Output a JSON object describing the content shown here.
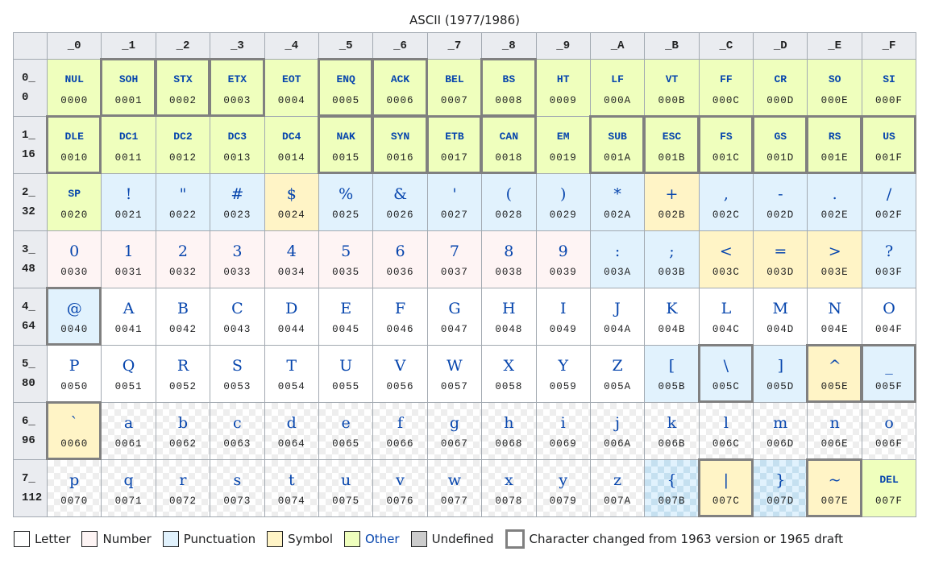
{
  "title": "ASCII (1977/1986)",
  "colors": {
    "letter": "#ffffff",
    "number": "#fef4f4",
    "punctuation": "#e1f2fd",
    "symbol": "#fff4c6",
    "other": "#efffbd",
    "undefined": "#cccccc",
    "changed_border": "#808080",
    "glyph": "#0645ad",
    "header_bg": "#eaecf0"
  },
  "column_headers": [
    "_0",
    "_1",
    "_2",
    "_3",
    "_4",
    "_5",
    "_6",
    "_7",
    "_8",
    "_9",
    "_A",
    "_B",
    "_C",
    "_D",
    "_E",
    "_F"
  ],
  "rows": [
    {
      "hex": "0_",
      "dec": "0",
      "cells": [
        {
          "g": "NUL",
          "cp": "0000",
          "cat": "other",
          "ctrl": true,
          "changed": false
        },
        {
          "g": "SOH",
          "cp": "0001",
          "cat": "other",
          "ctrl": true,
          "changed": true
        },
        {
          "g": "STX",
          "cp": "0002",
          "cat": "other",
          "ctrl": true,
          "changed": true
        },
        {
          "g": "ETX",
          "cp": "0003",
          "cat": "other",
          "ctrl": true,
          "changed": true
        },
        {
          "g": "EOT",
          "cp": "0004",
          "cat": "other",
          "ctrl": true,
          "changed": false
        },
        {
          "g": "ENQ",
          "cp": "0005",
          "cat": "other",
          "ctrl": true,
          "changed": true
        },
        {
          "g": "ACK",
          "cp": "0006",
          "cat": "other",
          "ctrl": true,
          "changed": true
        },
        {
          "g": "BEL",
          "cp": "0007",
          "cat": "other",
          "ctrl": true,
          "changed": false
        },
        {
          "g": "BS",
          "cp": "0008",
          "cat": "other",
          "ctrl": true,
          "changed": true
        },
        {
          "g": "HT",
          "cp": "0009",
          "cat": "other",
          "ctrl": true,
          "changed": false
        },
        {
          "g": "LF",
          "cp": "000A",
          "cat": "other",
          "ctrl": true,
          "changed": false
        },
        {
          "g": "VT",
          "cp": "000B",
          "cat": "other",
          "ctrl": true,
          "changed": false
        },
        {
          "g": "FF",
          "cp": "000C",
          "cat": "other",
          "ctrl": true,
          "changed": false
        },
        {
          "g": "CR",
          "cp": "000D",
          "cat": "other",
          "ctrl": true,
          "changed": false
        },
        {
          "g": "SO",
          "cp": "000E",
          "cat": "other",
          "ctrl": true,
          "changed": false
        },
        {
          "g": "SI",
          "cp": "000F",
          "cat": "other",
          "ctrl": true,
          "changed": false
        }
      ]
    },
    {
      "hex": "1_",
      "dec": "16",
      "cells": [
        {
          "g": "DLE",
          "cp": "0010",
          "cat": "other",
          "ctrl": true,
          "changed": true
        },
        {
          "g": "DC1",
          "cp": "0011",
          "cat": "other",
          "ctrl": true,
          "changed": false
        },
        {
          "g": "DC2",
          "cp": "0012",
          "cat": "other",
          "ctrl": true,
          "changed": false
        },
        {
          "g": "DC3",
          "cp": "0013",
          "cat": "other",
          "ctrl": true,
          "changed": false
        },
        {
          "g": "DC4",
          "cp": "0014",
          "cat": "other",
          "ctrl": true,
          "changed": false
        },
        {
          "g": "NAK",
          "cp": "0015",
          "cat": "other",
          "ctrl": true,
          "changed": true
        },
        {
          "g": "SYN",
          "cp": "0016",
          "cat": "other",
          "ctrl": true,
          "changed": true
        },
        {
          "g": "ETB",
          "cp": "0017",
          "cat": "other",
          "ctrl": true,
          "changed": true
        },
        {
          "g": "CAN",
          "cp": "0018",
          "cat": "other",
          "ctrl": true,
          "changed": true
        },
        {
          "g": "EM",
          "cp": "0019",
          "cat": "other",
          "ctrl": true,
          "changed": false
        },
        {
          "g": "SUB",
          "cp": "001A",
          "cat": "other",
          "ctrl": true,
          "changed": true
        },
        {
          "g": "ESC",
          "cp": "001B",
          "cat": "other",
          "ctrl": true,
          "changed": true
        },
        {
          "g": "FS",
          "cp": "001C",
          "cat": "other",
          "ctrl": true,
          "changed": true
        },
        {
          "g": "GS",
          "cp": "001D",
          "cat": "other",
          "ctrl": true,
          "changed": true
        },
        {
          "g": "RS",
          "cp": "001E",
          "cat": "other",
          "ctrl": true,
          "changed": true
        },
        {
          "g": "US",
          "cp": "001F",
          "cat": "other",
          "ctrl": true,
          "changed": true
        }
      ]
    },
    {
      "hex": "2_",
      "dec": "32",
      "cells": [
        {
          "g": "SP",
          "cp": "0020",
          "cat": "other",
          "ctrl": true,
          "changed": false
        },
        {
          "g": "!",
          "cp": "0021",
          "cat": "punct",
          "changed": false
        },
        {
          "g": "\"",
          "cp": "0022",
          "cat": "punct",
          "changed": false
        },
        {
          "g": "#",
          "cp": "0023",
          "cat": "punct",
          "changed": false
        },
        {
          "g": "$",
          "cp": "0024",
          "cat": "symbol",
          "changed": false
        },
        {
          "g": "%",
          "cp": "0025",
          "cat": "punct",
          "changed": false
        },
        {
          "g": "&",
          "cp": "0026",
          "cat": "punct",
          "changed": false
        },
        {
          "g": "'",
          "cp": "0027",
          "cat": "punct",
          "changed": false
        },
        {
          "g": "(",
          "cp": "0028",
          "cat": "punct",
          "changed": false
        },
        {
          "g": ")",
          "cp": "0029",
          "cat": "punct",
          "changed": false
        },
        {
          "g": "*",
          "cp": "002A",
          "cat": "punct",
          "changed": false
        },
        {
          "g": "+",
          "cp": "002B",
          "cat": "symbol",
          "changed": false
        },
        {
          "g": ",",
          "cp": "002C",
          "cat": "punct",
          "changed": false
        },
        {
          "g": "-",
          "cp": "002D",
          "cat": "punct",
          "changed": false
        },
        {
          "g": ".",
          "cp": "002E",
          "cat": "punct",
          "changed": false
        },
        {
          "g": "/",
          "cp": "002F",
          "cat": "punct",
          "changed": false
        }
      ]
    },
    {
      "hex": "3_",
      "dec": "48",
      "cells": [
        {
          "g": "0",
          "cp": "0030",
          "cat": "number",
          "changed": false
        },
        {
          "g": "1",
          "cp": "0031",
          "cat": "number",
          "changed": false
        },
        {
          "g": "2",
          "cp": "0032",
          "cat": "number",
          "changed": false
        },
        {
          "g": "3",
          "cp": "0033",
          "cat": "number",
          "changed": false
        },
        {
          "g": "4",
          "cp": "0034",
          "cat": "number",
          "changed": false
        },
        {
          "g": "5",
          "cp": "0035",
          "cat": "number",
          "changed": false
        },
        {
          "g": "6",
          "cp": "0036",
          "cat": "number",
          "changed": false
        },
        {
          "g": "7",
          "cp": "0037",
          "cat": "number",
          "changed": false
        },
        {
          "g": "8",
          "cp": "0038",
          "cat": "number",
          "changed": false
        },
        {
          "g": "9",
          "cp": "0039",
          "cat": "number",
          "changed": false
        },
        {
          "g": ":",
          "cp": "003A",
          "cat": "punct",
          "changed": false
        },
        {
          "g": ";",
          "cp": "003B",
          "cat": "punct",
          "changed": false
        },
        {
          "g": "<",
          "cp": "003C",
          "cat": "symbol",
          "changed": false
        },
        {
          "g": "=",
          "cp": "003D",
          "cat": "symbol",
          "changed": false
        },
        {
          "g": ">",
          "cp": "003E",
          "cat": "symbol",
          "changed": false
        },
        {
          "g": "?",
          "cp": "003F",
          "cat": "punct",
          "changed": false
        }
      ]
    },
    {
      "hex": "4_",
      "dec": "64",
      "cells": [
        {
          "g": "@",
          "cp": "0040",
          "cat": "punct",
          "changed": true
        },
        {
          "g": "A",
          "cp": "0041",
          "cat": "letter",
          "changed": false
        },
        {
          "g": "B",
          "cp": "0042",
          "cat": "letter",
          "changed": false
        },
        {
          "g": "C",
          "cp": "0043",
          "cat": "letter",
          "changed": false
        },
        {
          "g": "D",
          "cp": "0044",
          "cat": "letter",
          "changed": false
        },
        {
          "g": "E",
          "cp": "0045",
          "cat": "letter",
          "changed": false
        },
        {
          "g": "F",
          "cp": "0046",
          "cat": "letter",
          "changed": false
        },
        {
          "g": "G",
          "cp": "0047",
          "cat": "letter",
          "changed": false
        },
        {
          "g": "H",
          "cp": "0048",
          "cat": "letter",
          "changed": false
        },
        {
          "g": "I",
          "cp": "0049",
          "cat": "letter",
          "changed": false
        },
        {
          "g": "J",
          "cp": "004A",
          "cat": "letter",
          "changed": false
        },
        {
          "g": "K",
          "cp": "004B",
          "cat": "letter",
          "changed": false
        },
        {
          "g": "L",
          "cp": "004C",
          "cat": "letter",
          "changed": false
        },
        {
          "g": "M",
          "cp": "004D",
          "cat": "letter",
          "changed": false
        },
        {
          "g": "N",
          "cp": "004E",
          "cat": "letter",
          "changed": false
        },
        {
          "g": "O",
          "cp": "004F",
          "cat": "letter",
          "changed": false
        }
      ]
    },
    {
      "hex": "5_",
      "dec": "80",
      "cells": [
        {
          "g": "P",
          "cp": "0050",
          "cat": "letter",
          "changed": false
        },
        {
          "g": "Q",
          "cp": "0051",
          "cat": "letter",
          "changed": false
        },
        {
          "g": "R",
          "cp": "0052",
          "cat": "letter",
          "changed": false
        },
        {
          "g": "S",
          "cp": "0053",
          "cat": "letter",
          "changed": false
        },
        {
          "g": "T",
          "cp": "0054",
          "cat": "letter",
          "changed": false
        },
        {
          "g": "U",
          "cp": "0055",
          "cat": "letter",
          "changed": false
        },
        {
          "g": "V",
          "cp": "0056",
          "cat": "letter",
          "changed": false
        },
        {
          "g": "W",
          "cp": "0057",
          "cat": "letter",
          "changed": false
        },
        {
          "g": "X",
          "cp": "0058",
          "cat": "letter",
          "changed": false
        },
        {
          "g": "Y",
          "cp": "0059",
          "cat": "letter",
          "changed": false
        },
        {
          "g": "Z",
          "cp": "005A",
          "cat": "letter",
          "changed": false
        },
        {
          "g": "[",
          "cp": "005B",
          "cat": "punct",
          "changed": false
        },
        {
          "g": "\\",
          "cp": "005C",
          "cat": "punct",
          "changed": true
        },
        {
          "g": "]",
          "cp": "005D",
          "cat": "punct",
          "changed": false
        },
        {
          "g": "^",
          "cp": "005E",
          "cat": "symbol",
          "changed": true
        },
        {
          "g": "_",
          "cp": "005F",
          "cat": "punct",
          "changed": true
        }
      ]
    },
    {
      "hex": "6_",
      "dec": "96",
      "cells": [
        {
          "g": "`",
          "cp": "0060",
          "cat": "symbol",
          "changed": true
        },
        {
          "g": "a",
          "cp": "0061",
          "cat": "letter",
          "checker": true,
          "changed": false
        },
        {
          "g": "b",
          "cp": "0062",
          "cat": "letter",
          "checker": true,
          "changed": false
        },
        {
          "g": "c",
          "cp": "0063",
          "cat": "letter",
          "checker": true,
          "changed": false
        },
        {
          "g": "d",
          "cp": "0064",
          "cat": "letter",
          "checker": true,
          "changed": false
        },
        {
          "g": "e",
          "cp": "0065",
          "cat": "letter",
          "checker": true,
          "changed": false
        },
        {
          "g": "f",
          "cp": "0066",
          "cat": "letter",
          "checker": true,
          "changed": false
        },
        {
          "g": "g",
          "cp": "0067",
          "cat": "letter",
          "checker": true,
          "changed": false
        },
        {
          "g": "h",
          "cp": "0068",
          "cat": "letter",
          "checker": true,
          "changed": false
        },
        {
          "g": "i",
          "cp": "0069",
          "cat": "letter",
          "checker": true,
          "changed": false
        },
        {
          "g": "j",
          "cp": "006A",
          "cat": "letter",
          "checker": true,
          "changed": false
        },
        {
          "g": "k",
          "cp": "006B",
          "cat": "letter",
          "checker": true,
          "changed": false
        },
        {
          "g": "l",
          "cp": "006C",
          "cat": "letter",
          "checker": true,
          "changed": false
        },
        {
          "g": "m",
          "cp": "006D",
          "cat": "letter",
          "checker": true,
          "changed": false
        },
        {
          "g": "n",
          "cp": "006E",
          "cat": "letter",
          "checker": true,
          "changed": false
        },
        {
          "g": "o",
          "cp": "006F",
          "cat": "letter",
          "checker": true,
          "changed": false
        }
      ]
    },
    {
      "hex": "7_",
      "dec": "112",
      "cells": [
        {
          "g": "p",
          "cp": "0070",
          "cat": "letter",
          "checker": true,
          "changed": false
        },
        {
          "g": "q",
          "cp": "0071",
          "cat": "letter",
          "checker": true,
          "changed": false
        },
        {
          "g": "r",
          "cp": "0072",
          "cat": "letter",
          "checker": true,
          "changed": false
        },
        {
          "g": "s",
          "cp": "0073",
          "cat": "letter",
          "checker": true,
          "changed": false
        },
        {
          "g": "t",
          "cp": "0074",
          "cat": "letter",
          "checker": true,
          "changed": false
        },
        {
          "g": "u",
          "cp": "0075",
          "cat": "letter",
          "checker": true,
          "changed": false
        },
        {
          "g": "v",
          "cp": "0076",
          "cat": "letter",
          "checker": true,
          "changed": false
        },
        {
          "g": "w",
          "cp": "0077",
          "cat": "letter",
          "checker": true,
          "changed": false
        },
        {
          "g": "x",
          "cp": "0078",
          "cat": "letter",
          "checker": true,
          "changed": false
        },
        {
          "g": "y",
          "cp": "0079",
          "cat": "letter",
          "checker": true,
          "changed": false
        },
        {
          "g": "z",
          "cp": "007A",
          "cat": "letter",
          "checker": true,
          "changed": false
        },
        {
          "g": "{",
          "cp": "007B",
          "cat": "punct",
          "checker": true,
          "changed": false
        },
        {
          "g": "|",
          "cp": "007C",
          "cat": "symbol",
          "changed": true
        },
        {
          "g": "}",
          "cp": "007D",
          "cat": "punct",
          "checker": true,
          "changed": false
        },
        {
          "g": "~",
          "cp": "007E",
          "cat": "symbol",
          "changed": true
        },
        {
          "g": "DEL",
          "cp": "007F",
          "cat": "other",
          "ctrl": true,
          "changed": false
        }
      ]
    }
  ],
  "legend": [
    {
      "label": "Letter",
      "color": "#ffffff",
      "link": false
    },
    {
      "label": "Number",
      "color": "#fef4f4",
      "link": false
    },
    {
      "label": "Punctuation",
      "color": "#e1f2fd",
      "link": false
    },
    {
      "label": "Symbol",
      "color": "#fff4c6",
      "link": false
    },
    {
      "label": "Other",
      "color": "#efffbd",
      "link": true
    },
    {
      "label": "Undefined",
      "color": "#cccccc",
      "link": false
    },
    {
      "label": "Character changed from 1963 version or 1965 draft",
      "color": "#ffffff",
      "link": false,
      "changed": true
    }
  ]
}
